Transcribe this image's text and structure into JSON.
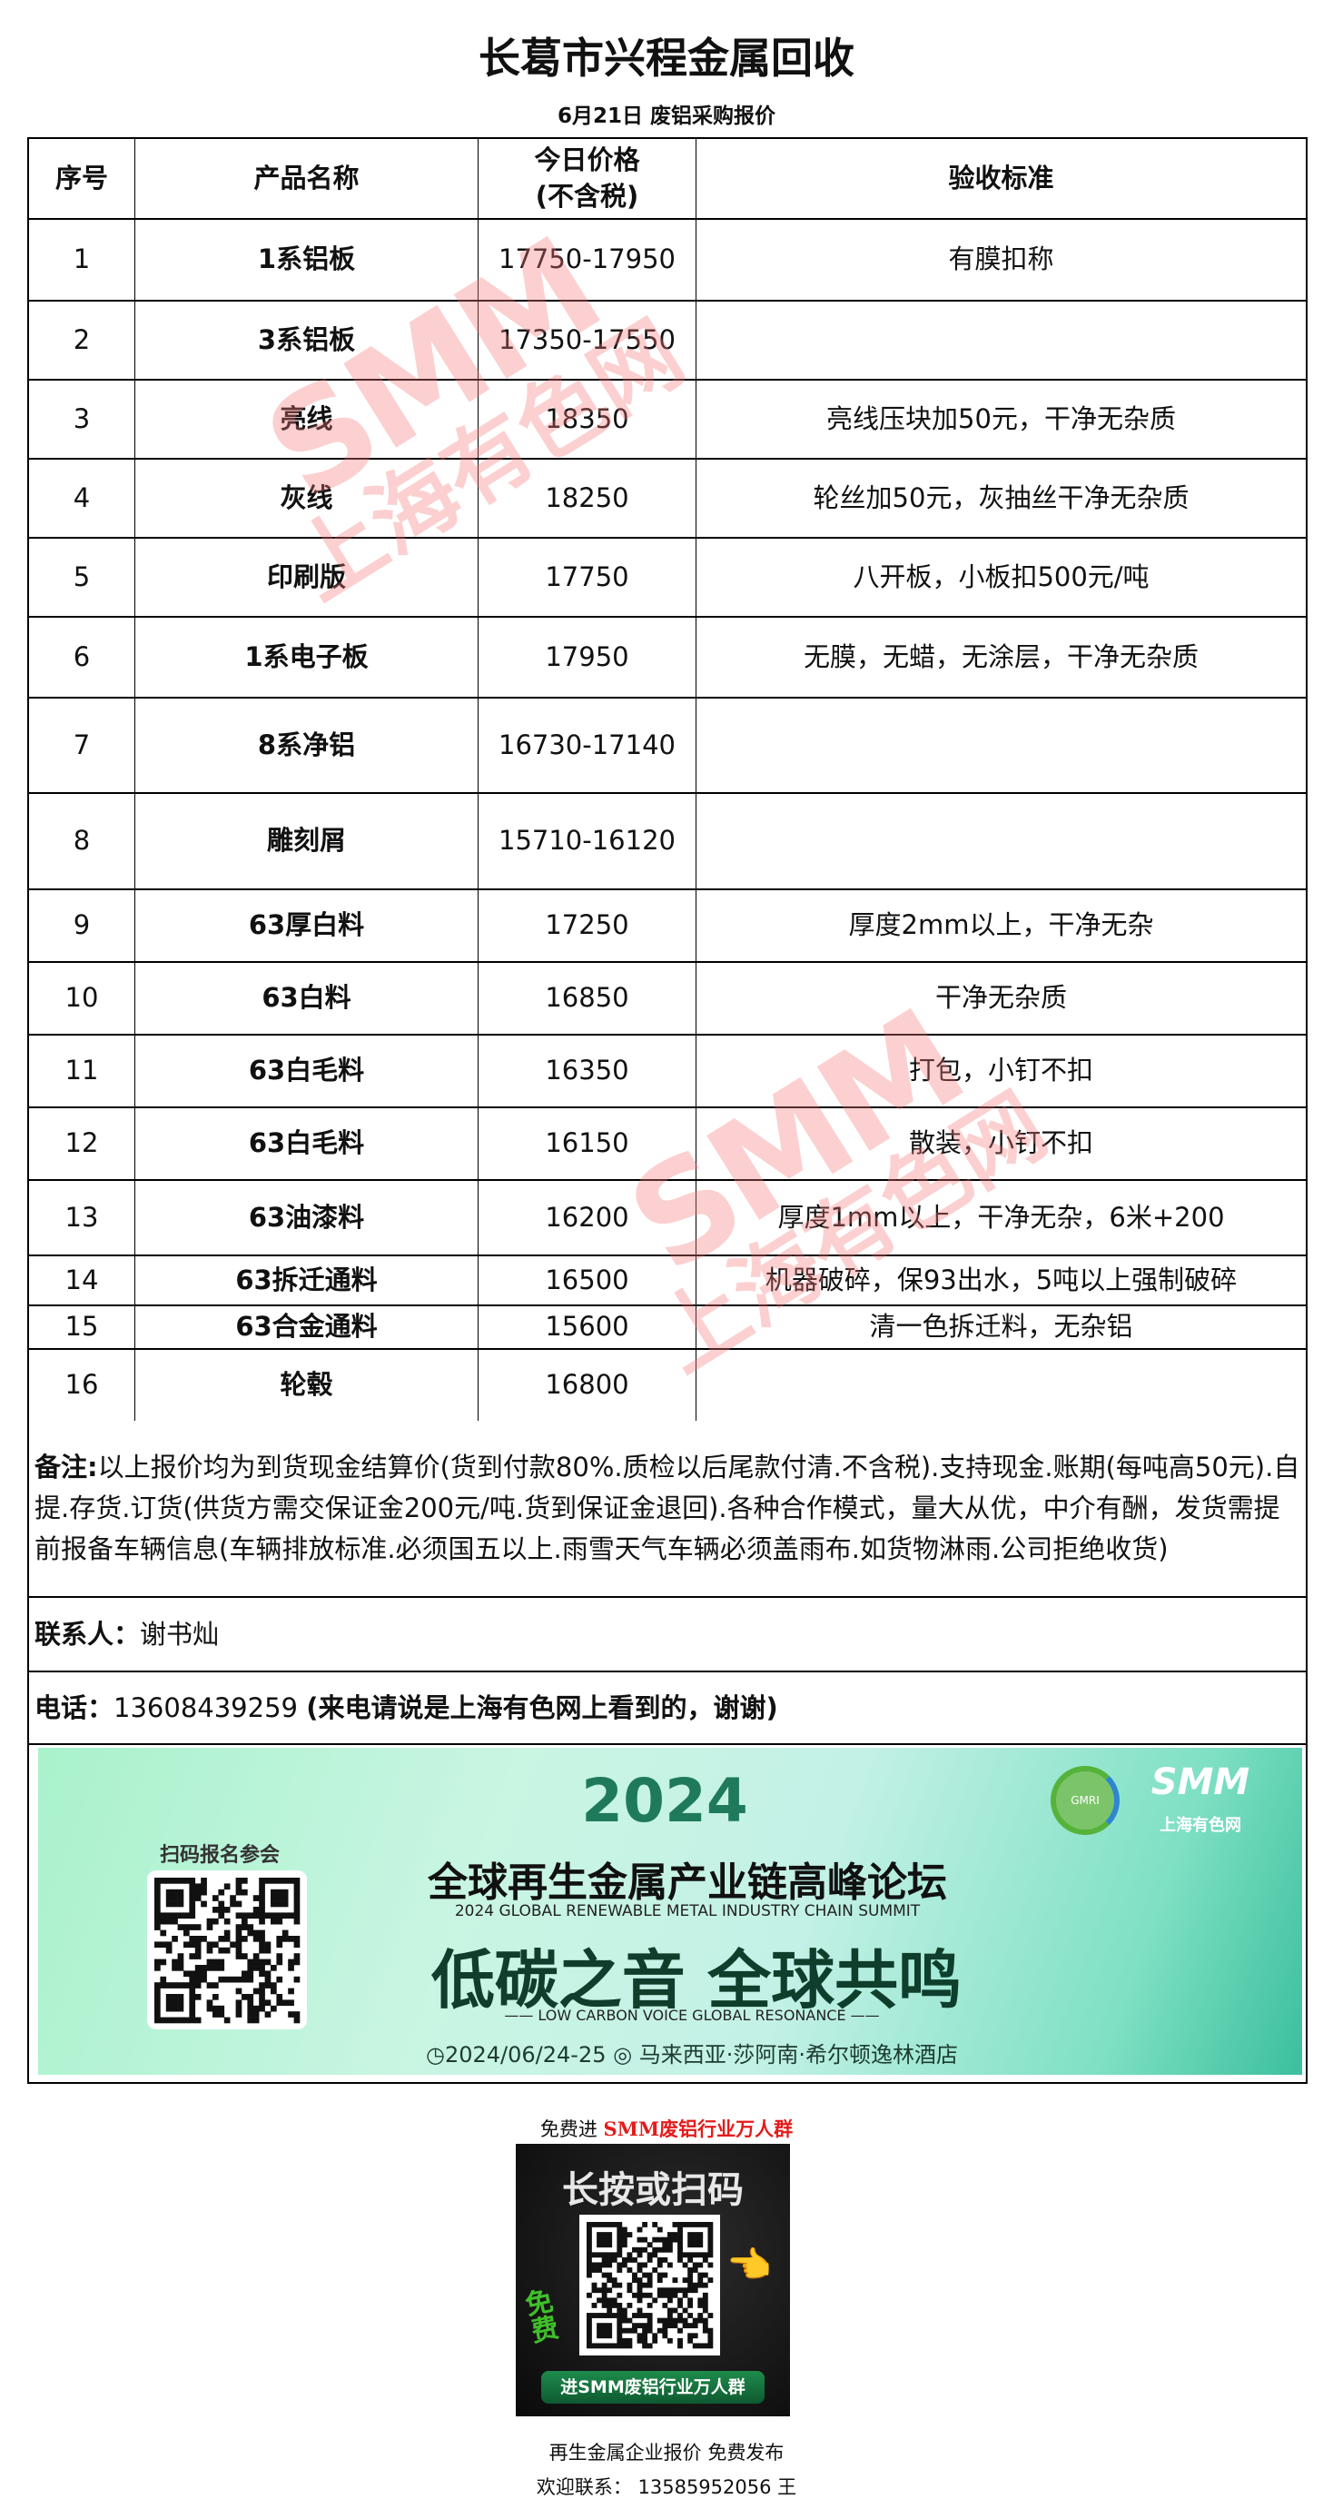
{
  "title": "长葛市兴程金属回收",
  "subtitle": "6月21日 废铝采购报价",
  "table": {
    "headers": [
      "序号",
      "产品名称",
      "今日价格\n(不含税)",
      "验收标准"
    ],
    "header_price_line1": "今日价格",
    "header_price_line2": "(不含税)",
    "rows": [
      {
        "no": "1",
        "name": "1系铝板",
        "price": "17750-17950",
        "standard": "有膜扣称"
      },
      {
        "no": "2",
        "name": "3系铝板",
        "price": "17350-17550",
        "standard": ""
      },
      {
        "no": "3",
        "name": "亮线",
        "price": "18350",
        "standard": "亮线压块加50元，干净无杂质"
      },
      {
        "no": "4",
        "name": "灰线",
        "price": "18250",
        "standard": "轮丝加50元，灰抽丝干净无杂质"
      },
      {
        "no": "5",
        "name": "印刷版",
        "price": "17750",
        "standard": "八开板，小板扣500元/吨"
      },
      {
        "no": "6",
        "name": "1系电子板",
        "price": "17950",
        "standard": "无膜，无蜡，无涂层，干净无杂质"
      },
      {
        "no": "7",
        "name": "8系净铝",
        "price": "16730-17140",
        "standard": ""
      },
      {
        "no": "8",
        "name": "雕刻屑",
        "price": "15710-16120",
        "standard": ""
      },
      {
        "no": "9",
        "name": "63厚白料",
        "price": "17250",
        "standard": "厚度2mm以上，干净无杂"
      },
      {
        "no": "10",
        "name": "63白料",
        "price": "16850",
        "standard": "干净无杂质"
      },
      {
        "no": "11",
        "name": "63白毛料",
        "price": "16350",
        "standard": "打包，小钉不扣"
      },
      {
        "no": "12",
        "name": "63白毛料",
        "price": "16150",
        "standard": "散装，小钉不扣"
      },
      {
        "no": "13",
        "name": "63油漆料",
        "price": "16200",
        "standard": "厚度1mm以上，干净无杂，6米+200"
      },
      {
        "no": "14",
        "name": "63拆迁通料",
        "price": "16500",
        "standard": "机器破碎，保93出水，5吨以上强制破碎"
      },
      {
        "no": "15",
        "name": "63合金通料",
        "price": "15600",
        "standard": "清一色拆迁料，无杂铝"
      },
      {
        "no": "16",
        "name": "轮毂",
        "price": "16800",
        "standard": ""
      }
    ]
  },
  "notes": {
    "label": "备注:",
    "text": "以上报价均为到货现金结算价(货到付款80%.质检以后尾款付清.不含税).支持现金.账期(每吨高50元).自提.存货.订货(供货方需交保证金200元/吨.货到保证金退回).各种合作模式，量大从优，中介有酬，发货需提前报备车辆信息(车辆排放标准.必须国五以上.雨雪天气车辆必须盖雨布.如货物淋雨.公司拒绝收货)"
  },
  "contact": {
    "label": "联系人：",
    "name": "谢书灿"
  },
  "phone": {
    "label": "电话：",
    "number": "13608439259",
    "note": "(来电请说是上海有色网上看到的，谢谢)"
  },
  "watermark": {
    "brand": "SMM",
    "cn": "上海有色网"
  },
  "banner": {
    "year": "2024",
    "scan_label": "扫码报名参会",
    "title_cn": "全球再生金属产业链高峰论坛",
    "title_en": "2024 GLOBAL RENEWABLE METAL INDUSTRY CHAIN SUMMIT",
    "slogan_cn": "低碳之音 全球共鸣",
    "slogan_en": "—— LOW CARBON VOICE GLOBAL RESONANCE ——",
    "date": "2024/06/24-25",
    "venue": "马来西亚·莎阿南·希尔顿逸林酒店",
    "logo1": "GMRI",
    "logo2": "SMM",
    "logo2_cn": "上海有色网",
    "colors": {
      "dark_green": "#1f7a5c",
      "accent": "#3bbf9d"
    }
  },
  "promo": {
    "prefix": "免费进 ",
    "group": "SMM废铝行业万人群",
    "poster_title": "长按或扫码",
    "poster_free": "免费",
    "poster_button": "进SMM废铝行业万人群",
    "line1": "再生金属企业报价 免费发布",
    "line2": "欢迎联系：  13585952056 王",
    "accent": "#e41b1b"
  }
}
